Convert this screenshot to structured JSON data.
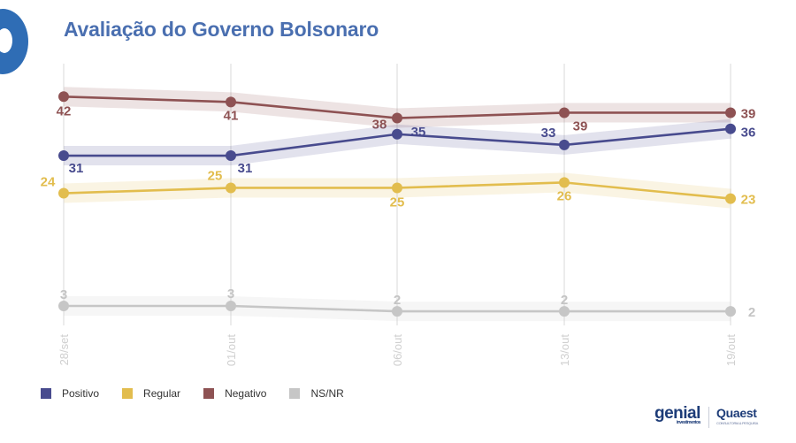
{
  "title": "Avaliação do Governo Bolsonaro",
  "chart_data": {
    "type": "line",
    "categories": [
      "28/set",
      "01/out",
      "06/out",
      "13/out",
      "19/out"
    ],
    "series": [
      {
        "name": "Negativo",
        "values": [
          42,
          41,
          38,
          39,
          39
        ],
        "color": "#8e5253"
      },
      {
        "name": "Positivo",
        "values": [
          31,
          31,
          35,
          33,
          36
        ],
        "color": "#484b8e"
      },
      {
        "name": "Regular",
        "values": [
          24,
          25,
          25,
          26,
          23
        ],
        "color": "#e2bd4e"
      },
      {
        "name": "NS/NR",
        "values": [
          3,
          3,
          2,
          2,
          2
        ],
        "color": "#c6c6c6"
      }
    ],
    "legend_order": [
      "Positivo",
      "Regular",
      "Negativo",
      "NS/NR"
    ],
    "legend_position": "bottom-left",
    "grid": "vertical",
    "value_labels": true,
    "confidence_band": true
  },
  "logos": {
    "genial": "genial",
    "genial_sub": "investimentos",
    "quaest": "Quaest",
    "quaest_sub": "CONSULTORIA & PESQUISA"
  }
}
